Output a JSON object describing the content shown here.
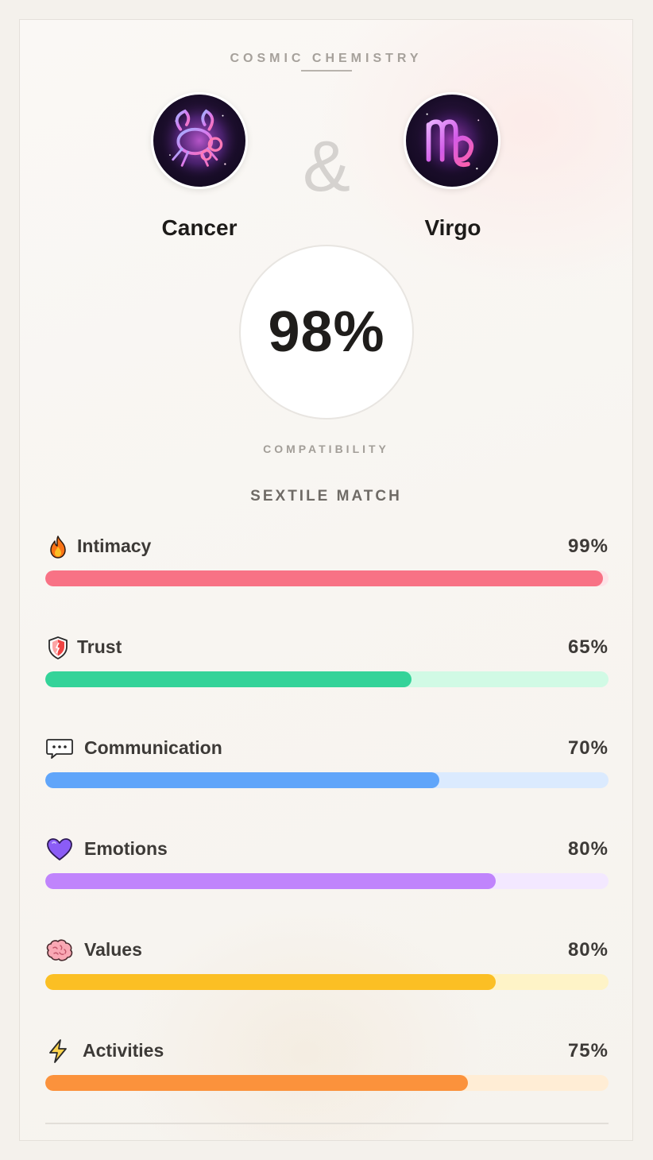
{
  "header": {
    "eyebrow": "COSMIC CHEMISTRY"
  },
  "signs": {
    "first": {
      "name": "Cancer",
      "icon": "cancer-zodiac-icon"
    },
    "connector": "&",
    "second": {
      "name": "Virgo",
      "icon": "virgo-zodiac-icon"
    }
  },
  "score": {
    "value": "98%",
    "label": "COMPATIBILITY",
    "match_type": "SEXTILE MATCH"
  },
  "metrics": [
    {
      "label": "Intimacy",
      "value": "99%",
      "percent": 99,
      "icon": "fire-icon",
      "color": "#f87285",
      "track_color": "#fde4e8"
    },
    {
      "label": "Trust",
      "value": "65%",
      "percent": 65,
      "icon": "shield-icon",
      "color": "#34d399",
      "track_color": "#d1fae5"
    },
    {
      "label": "Communication",
      "value": "70%",
      "percent": 70,
      "icon": "speech-bubble-icon",
      "color": "#60a5fa",
      "track_color": "#dbeafe"
    },
    {
      "label": "Emotions",
      "value": "80%",
      "percent": 80,
      "icon": "purple-heart-icon",
      "color": "#c084fc",
      "track_color": "#f3e8ff"
    },
    {
      "label": "Values",
      "value": "80%",
      "percent": 80,
      "icon": "brain-icon",
      "color": "#fbbf24",
      "track_color": "#fef3c7"
    },
    {
      "label": "Activities",
      "value": "75%",
      "percent": 75,
      "icon": "lightning-icon",
      "color": "#fb923c",
      "track_color": "#ffedd5"
    }
  ]
}
